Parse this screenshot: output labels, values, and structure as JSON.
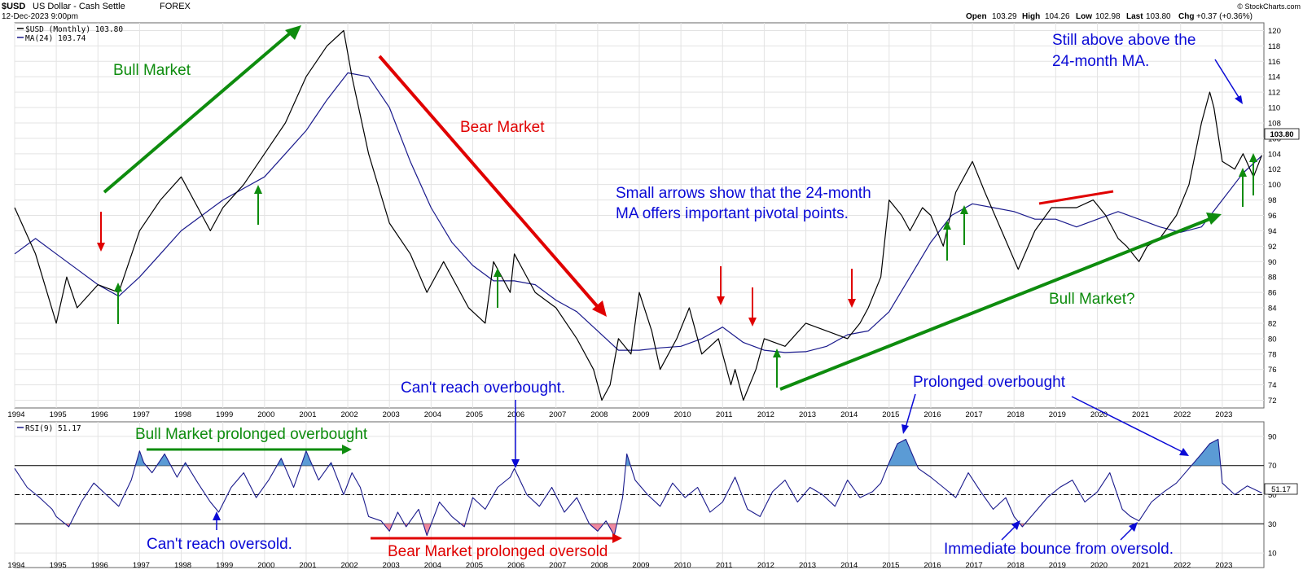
{
  "header": {
    "symbol": "$USD",
    "name": "US Dollar - Cash Settle",
    "exchange": "FOREX",
    "date": "12-Dec-2023 9:00pm",
    "open_label": "Open",
    "open": "103.29",
    "high_label": "High",
    "high": "104.26",
    "low_label": "Low",
    "low": "102.98",
    "last_label": "Last",
    "last": "103.80",
    "chg_label": "Chg",
    "chg": "+0.37 (+0.36%)",
    "credit": "© StockCharts.com"
  },
  "colors": {
    "price": "#000000",
    "ma": "#1a1a8c",
    "green": "#0e8c0e",
    "red": "#e00000",
    "blue": "#0a0ad6",
    "overbought_fill": "#5b9bd5",
    "oversold_fill": "#f08aa0"
  },
  "chart_data": [
    {
      "type": "line",
      "title": "$USD (Monthly) 103.80",
      "x_unit": "year",
      "xlim": [
        1994,
        2024
      ],
      "ylim": [
        71,
        121
      ],
      "y_ticks": [
        72,
        74,
        76,
        78,
        80,
        82,
        84,
        86,
        88,
        90,
        92,
        94,
        96,
        98,
        100,
        102,
        104,
        106,
        108,
        110,
        112,
        114,
        116,
        118,
        120
      ],
      "x_tick_labels": [
        "1994",
        "1995",
        "1996",
        "1997",
        "1998",
        "1999",
        "2000",
        "2001",
        "2002",
        "2003",
        "2004",
        "2005",
        "2006",
        "2007",
        "2008",
        "2009",
        "2010",
        "2011",
        "2012",
        "2013",
        "2014",
        "2015",
        "2016",
        "2017",
        "2018",
        "2019",
        "2020",
        "2021",
        "2022",
        "2023"
      ],
      "last_value_label": "103.80",
      "series": [
        {
          "name": "$USD (Monthly) 103.80",
          "x": [
            1994.0,
            1994.5,
            1995.0,
            1995.25,
            1995.5,
            1996.0,
            1996.5,
            1997.0,
            1997.5,
            1998.0,
            1998.5,
            1998.7,
            1999.0,
            1999.5,
            2000.0,
            2000.5,
            2001.0,
            2001.5,
            2001.9,
            2002.1,
            2002.5,
            2003.0,
            2003.5,
            2003.9,
            2004.3,
            2004.9,
            2005.3,
            2005.5,
            2005.9,
            2006.0,
            2006.5,
            2007.0,
            2007.5,
            2007.9,
            2008.1,
            2008.3,
            2008.5,
            2008.8,
            2009.0,
            2009.3,
            2009.5,
            2009.9,
            2010.2,
            2010.5,
            2010.9,
            2011.2,
            2011.3,
            2011.5,
            2011.8,
            2012.0,
            2012.5,
            2013.0,
            2013.5,
            2014.0,
            2014.3,
            2014.5,
            2014.8,
            2015.0,
            2015.3,
            2015.5,
            2015.8,
            2016.0,
            2016.3,
            2016.6,
            2016.9,
            2017.0,
            2017.3,
            2017.7,
            2018.1,
            2018.5,
            2018.9,
            2019.5,
            2019.9,
            2020.2,
            2020.5,
            2020.7,
            2021.0,
            2021.2,
            2021.5,
            2021.9,
            2022.2,
            2022.5,
            2022.7,
            2022.8,
            2023.0,
            2023.3,
            2023.5,
            2023.75,
            2023.95
          ],
          "y": [
            97,
            91,
            82,
            88,
            84,
            87,
            86,
            94,
            98,
            101,
            96,
            94,
            97,
            100,
            104,
            108,
            114,
            118,
            120,
            114,
            104,
            95,
            91,
            86,
            90,
            84,
            82,
            90,
            86,
            91,
            86,
            84,
            80,
            76,
            72,
            74,
            80,
            78,
            86,
            81,
            76,
            80,
            84,
            78,
            80,
            74,
            76,
            72,
            76,
            80,
            79,
            82,
            81,
            80,
            82,
            84,
            88,
            98,
            96,
            94,
            97,
            96,
            92,
            99,
            102,
            103,
            99,
            94,
            89,
            94,
            97,
            97,
            98,
            96,
            93,
            92,
            90,
            92,
            93,
            96,
            100,
            108,
            112,
            110,
            103,
            102,
            104,
            101,
            103.8
          ]
        },
        {
          "name": "MA(24) 103.74",
          "x": [
            1994.0,
            1994.5,
            1995.0,
            1995.5,
            1996.0,
            1996.5,
            1997.0,
            1997.5,
            1998.0,
            1998.5,
            1999.0,
            1999.5,
            2000.0,
            2000.5,
            2001.0,
            2001.5,
            2002.0,
            2002.5,
            2003.0,
            2003.5,
            2004.0,
            2004.5,
            2005.0,
            2005.5,
            2006.0,
            2006.5,
            2007.0,
            2007.5,
            2008.0,
            2008.5,
            2009.0,
            2009.5,
            2010.0,
            2010.5,
            2011.0,
            2011.5,
            2012.0,
            2012.5,
            2013.0,
            2013.5,
            2014.0,
            2014.5,
            2015.0,
            2015.5,
            2016.0,
            2016.5,
            2017.0,
            2017.5,
            2018.0,
            2018.5,
            2019.0,
            2019.5,
            2020.0,
            2020.5,
            2021.0,
            2021.5,
            2022.0,
            2022.5,
            2023.0,
            2023.5,
            2023.95
          ],
          "y": [
            91,
            93,
            91,
            89,
            87,
            85.5,
            88,
            91,
            94,
            96,
            98,
            99.5,
            101,
            104,
            107,
            111,
            114.5,
            114,
            110,
            103,
            97,
            92.5,
            89.5,
            87.5,
            87.5,
            87,
            85,
            83.5,
            81,
            78.5,
            78.5,
            78.8,
            79,
            80,
            81.5,
            79.5,
            78.5,
            78.2,
            78.3,
            79,
            80.5,
            81,
            83.5,
            88,
            92.5,
            96,
            97.5,
            97,
            96.5,
            95.5,
            95.5,
            94.5,
            95.5,
            96.5,
            95.5,
            94.5,
            93.8,
            94.5,
            98,
            101.5,
            103.74
          ]
        }
      ]
    },
    {
      "type": "line",
      "title": "RSI(9) 51.17",
      "x_unit": "year",
      "xlim": [
        1994,
        2024
      ],
      "ylim": [
        0,
        100
      ],
      "y_ticks": [
        10,
        30,
        50,
        70,
        90
      ],
      "overbought": 70,
      "oversold": 30,
      "midline": 50,
      "last_value_label": "51.17",
      "series": [
        {
          "name": "RSI(9) 51.17",
          "x": [
            1994.0,
            1994.3,
            1994.6,
            1994.9,
            1995.0,
            1995.3,
            1995.6,
            1995.9,
            1996.2,
            1996.5,
            1996.8,
            1997.0,
            1997.1,
            1997.3,
            1997.6,
            1997.9,
            1998.1,
            1998.4,
            1998.7,
            1998.9,
            1999.2,
            1999.5,
            1999.8,
            2000.1,
            2000.4,
            2000.7,
            2001.0,
            2001.3,
            2001.6,
            2001.9,
            2002.1,
            2002.3,
            2002.5,
            2002.8,
            2003.0,
            2003.2,
            2003.4,
            2003.7,
            2003.9,
            2004.2,
            2004.5,
            2004.8,
            2005.0,
            2005.3,
            2005.6,
            2005.9,
            2006.0,
            2006.3,
            2006.6,
            2006.9,
            2007.2,
            2007.5,
            2007.8,
            2008.0,
            2008.2,
            2008.4,
            2008.6,
            2008.7,
            2008.9,
            2009.2,
            2009.5,
            2009.8,
            2010.1,
            2010.4,
            2010.7,
            2011.0,
            2011.3,
            2011.6,
            2011.9,
            2012.2,
            2012.5,
            2012.8,
            2013.1,
            2013.4,
            2013.7,
            2014.0,
            2014.3,
            2014.6,
            2014.8,
            2015.0,
            2015.2,
            2015.4,
            2015.7,
            2016.0,
            2016.3,
            2016.6,
            2016.9,
            2017.2,
            2017.5,
            2017.8,
            2018.0,
            2018.2,
            2018.5,
            2018.8,
            2019.1,
            2019.4,
            2019.7,
            2020.0,
            2020.3,
            2020.6,
            2020.8,
            2021.0,
            2021.3,
            2021.6,
            2021.9,
            2022.2,
            2022.5,
            2022.7,
            2022.9,
            2023.0,
            2023.3,
            2023.6,
            2023.95
          ],
          "y": [
            68,
            55,
            48,
            40,
            35,
            28,
            45,
            58,
            50,
            42,
            60,
            80,
            72,
            65,
            78,
            62,
            72,
            58,
            45,
            38,
            55,
            65,
            48,
            60,
            75,
            55,
            80,
            60,
            72,
            50,
            65,
            55,
            35,
            32,
            25,
            38,
            28,
            40,
            22,
            45,
            35,
            28,
            48,
            40,
            55,
            62,
            68,
            50,
            42,
            55,
            38,
            48,
            30,
            25,
            32,
            22,
            48,
            78,
            60,
            50,
            42,
            58,
            48,
            55,
            38,
            45,
            62,
            40,
            35,
            52,
            60,
            45,
            55,
            50,
            42,
            60,
            48,
            52,
            58,
            72,
            85,
            88,
            68,
            62,
            55,
            48,
            65,
            52,
            40,
            48,
            35,
            28,
            38,
            48,
            55,
            60,
            45,
            52,
            65,
            40,
            35,
            32,
            45,
            52,
            58,
            68,
            78,
            85,
            88,
            58,
            50,
            56,
            51.17
          ]
        }
      ]
    }
  ],
  "legend": {
    "price": "$USD (Monthly) 103.80",
    "ma": "MA(24) 103.74",
    "rsi": "RSI(9) 51.17"
  },
  "annotations": {
    "bull_market": "Bull  Market",
    "bear_market": "Bear  Market",
    "small_arrows_1": "Small arrows show that the 24-month",
    "small_arrows_2": "MA offers important pivotal points.",
    "still_above_1": "Still above above the",
    "still_above_2": "24-month MA.",
    "bull_market_q": "Bull  Market?",
    "bull_prolonged": "Bull  Market prolonged overbought",
    "cant_oversold": "Can't reach oversold.",
    "cant_overbought": "Can't reach overbought.",
    "bear_prolonged": "Bear Market prolonged oversold",
    "prolonged_overbought": "Prolonged overbought",
    "immediate_bounce": "Immediate bounce from oversold."
  }
}
